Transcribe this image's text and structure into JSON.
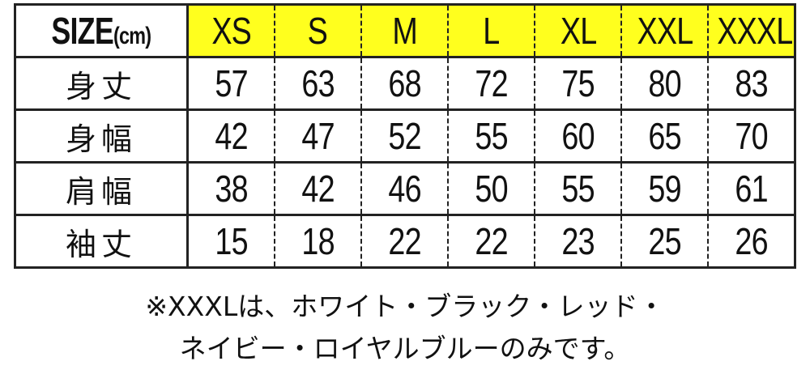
{
  "table": {
    "header_label": "SIZE",
    "header_unit": "(cm)",
    "sizes": [
      "XS",
      "S",
      "M",
      "L",
      "XL",
      "XXL",
      "XXXL"
    ],
    "rows": [
      {
        "label": "身丈",
        "values": [
          "57",
          "63",
          "68",
          "72",
          "75",
          "80",
          "83"
        ]
      },
      {
        "label": "身幅",
        "values": [
          "42",
          "47",
          "52",
          "55",
          "60",
          "65",
          "70"
        ]
      },
      {
        "label": "肩幅",
        "values": [
          "38",
          "42",
          "46",
          "50",
          "55",
          "59",
          "61"
        ]
      },
      {
        "label": "袖丈",
        "values": [
          "15",
          "18",
          "22",
          "22",
          "23",
          "25",
          "26"
        ]
      }
    ],
    "header_color": "#ffff1e"
  },
  "note": {
    "line1": "※XXXLは、ホワイト・ブラック・レッド・",
    "line2": "ネイビー・ロイヤルブルーのみです。"
  }
}
